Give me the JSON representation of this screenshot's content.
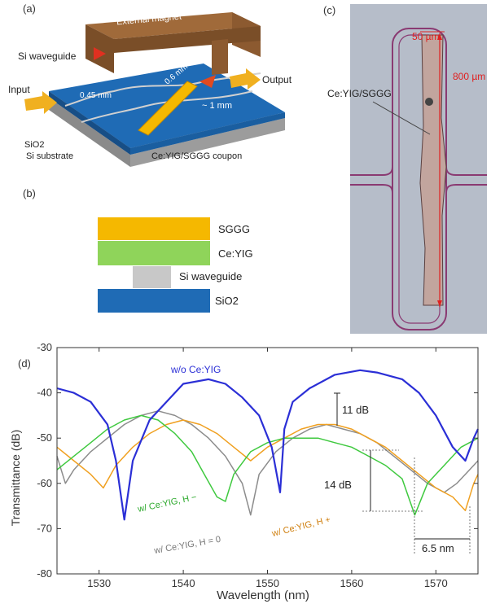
{
  "panel_a": {
    "label": "(a)",
    "magnet": "External magnet",
    "si_waveguide": "Si waveguide",
    "input": "Input",
    "output": "Output",
    "dim1": "0.45 mm",
    "dim2": "~ 1 mm",
    "dim3": "0.6 mm",
    "sio2": "SiO2",
    "substrate": "Si substrate",
    "coupon": "Ce:YIG/SGGG coupon"
  },
  "panel_b": {
    "label": "(b)",
    "layers": [
      "SGGG",
      "Ce:YIG",
      "Si waveguide",
      "SiO2"
    ],
    "colors": [
      "#f5b800",
      "#8fd45a",
      "#c8c8c8",
      "#1f6bb5"
    ]
  },
  "panel_c": {
    "label": "(c)",
    "width_label": "50 µm",
    "length_label": "800 µm",
    "material_label": "Ce:YIG/SGGG",
    "background_color": "#b6bdc9",
    "ring_color": "#8a3a72"
  },
  "panel_d": {
    "label": "(d)",
    "annot_11db": "11 dB",
    "annot_14db": "14 dB",
    "annot_65nm": "6.5 nm",
    "series_labels": [
      "w/o Ce:YIG",
      "w/ Ce:YIG, H −",
      "w/ Ce:YIG, H = 0",
      "w/ Ce:YIG, H +"
    ]
  },
  "chart_data": {
    "type": "line",
    "xlabel": "Wavelength (nm)",
    "ylabel": "Transmittance (dB)",
    "xlim": [
      1525,
      1575
    ],
    "ylim": [
      -80,
      -30
    ],
    "xticks": [
      1530,
      1540,
      1550,
      1560,
      1570
    ],
    "yticks": [
      -30,
      -40,
      -50,
      -60,
      -70,
      -80
    ],
    "grid": false,
    "series": [
      {
        "name": "w/o Ce:YIG",
        "color": "#2b2fd6",
        "x": [
          1525,
          1527,
          1529,
          1531,
          1532,
          1533,
          1534,
          1536,
          1540,
          1543,
          1545,
          1547,
          1549,
          1550.5,
          1551.5,
          1552,
          1553,
          1555,
          1558,
          1561,
          1563,
          1566,
          1568,
          1570,
          1572,
          1573.5,
          1574.5,
          1575
        ],
        "y": [
          -39,
          -40,
          -42,
          -47,
          -55,
          -68,
          -55,
          -46,
          -38,
          -37,
          -38,
          -41,
          -45,
          -52,
          -62,
          -48,
          -42,
          -39,
          -36,
          -35,
          -35.5,
          -37,
          -40,
          -45,
          -52,
          -55,
          -50,
          -48
        ]
      },
      {
        "name": "w/ Ce:YIG, H −",
        "color": "#3fc93f",
        "x": [
          1525,
          1527,
          1529,
          1531,
          1533,
          1535,
          1537,
          1539,
          1541,
          1542.5,
          1544,
          1545,
          1546,
          1548,
          1550,
          1552,
          1554,
          1556,
          1558,
          1560,
          1562,
          1564,
          1566,
          1567.5,
          1569,
          1571,
          1573,
          1575
        ],
        "y": [
          -57,
          -54,
          -51,
          -48,
          -46,
          -45,
          -46,
          -49,
          -53,
          -58,
          -63,
          -64,
          -58,
          -53,
          -51,
          -50,
          -50,
          -50,
          -51,
          -52,
          -54,
          -56,
          -59,
          -67,
          -60,
          -56,
          -52,
          -50
        ]
      },
      {
        "name": "w/ Ce:YIG, H = 0",
        "color": "#8c8c8c",
        "x": [
          1525,
          1526,
          1527,
          1529,
          1531,
          1533,
          1535,
          1537,
          1539,
          1541,
          1543,
          1545,
          1547,
          1548,
          1549,
          1551,
          1553,
          1555,
          1557,
          1559,
          1561,
          1563,
          1565,
          1567,
          1569,
          1571,
          1572.5,
          1574,
          1575
        ],
        "y": [
          -54,
          -60,
          -57,
          -53,
          -50,
          -47,
          -45,
          -44,
          -45,
          -47,
          -50,
          -54,
          -60,
          -67,
          -58,
          -53,
          -50,
          -48,
          -47,
          -48,
          -49,
          -51,
          -54,
          -57,
          -60,
          -62,
          -60,
          -57,
          -55
        ]
      },
      {
        "name": "w/ Ce:YIG, H +",
        "color": "#f0a020",
        "x": [
          1525,
          1527,
          1529,
          1530.5,
          1532,
          1534,
          1536,
          1538,
          1540,
          1542,
          1544,
          1546,
          1548,
          1550,
          1552,
          1554,
          1556,
          1558,
          1560,
          1562,
          1564,
          1566,
          1568,
          1570,
          1572,
          1573.5,
          1574.5,
          1575
        ],
        "y": [
          -52,
          -55,
          -58,
          -61,
          -56,
          -52,
          -49,
          -47,
          -46,
          -47,
          -49,
          -52,
          -55,
          -52,
          -50,
          -48,
          -47,
          -47,
          -48,
          -50,
          -52,
          -55,
          -58,
          -61,
          -63,
          -66,
          -60,
          -58
        ]
      }
    ]
  }
}
